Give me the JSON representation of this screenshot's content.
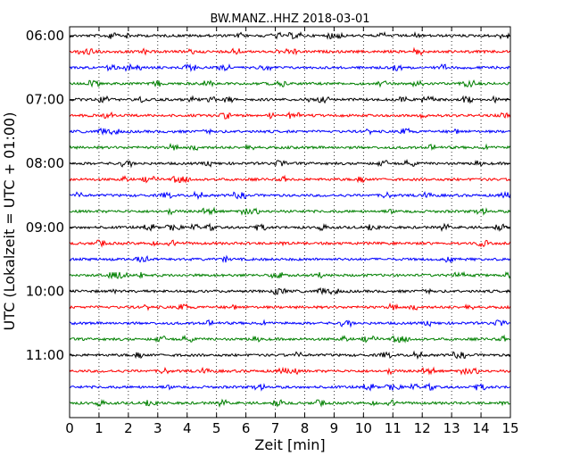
{
  "chart_data": {
    "type": "line",
    "title": "BW.MANZ..HHZ 2018-03-01",
    "xlabel": "Zeit  [min]",
    "ylabel": "UTC (Lokalzeit = UTC + 01:00)",
    "xlim": [
      0,
      15
    ],
    "x_ticks": [
      "0",
      "1",
      "2",
      "3",
      "4",
      "5",
      "6",
      "7",
      "8",
      "9",
      "10",
      "11",
      "12",
      "13",
      "14",
      "15"
    ],
    "y_ticks": [
      "06:00",
      "07:00",
      "08:00",
      "09:00",
      "10:00",
      "11:00"
    ],
    "grid_x": "dotted",
    "trace_interval_min": 15,
    "series": [
      {
        "start": "06:00",
        "color": "#000000"
      },
      {
        "start": "06:15",
        "color": "#ff0000"
      },
      {
        "start": "06:30",
        "color": "#0000ff"
      },
      {
        "start": "06:45",
        "color": "#008000"
      },
      {
        "start": "07:00",
        "color": "#000000"
      },
      {
        "start": "07:15",
        "color": "#ff0000"
      },
      {
        "start": "07:30",
        "color": "#0000ff"
      },
      {
        "start": "07:45",
        "color": "#008000"
      },
      {
        "start": "08:00",
        "color": "#000000"
      },
      {
        "start": "08:15",
        "color": "#ff0000"
      },
      {
        "start": "08:30",
        "color": "#0000ff"
      },
      {
        "start": "08:45",
        "color": "#008000"
      },
      {
        "start": "09:00",
        "color": "#000000"
      },
      {
        "start": "09:15",
        "color": "#ff0000"
      },
      {
        "start": "09:30",
        "color": "#0000ff"
      },
      {
        "start": "09:45",
        "color": "#008000"
      },
      {
        "start": "10:00",
        "color": "#000000"
      },
      {
        "start": "10:15",
        "color": "#ff0000"
      },
      {
        "start": "10:30",
        "color": "#0000ff"
      },
      {
        "start": "10:45",
        "color": "#008000"
      },
      {
        "start": "11:00",
        "color": "#000000"
      },
      {
        "start": "11:15",
        "color": "#ff0000"
      },
      {
        "start": "11:30",
        "color": "#0000ff"
      },
      {
        "start": "11:45",
        "color": "#008000"
      }
    ]
  }
}
